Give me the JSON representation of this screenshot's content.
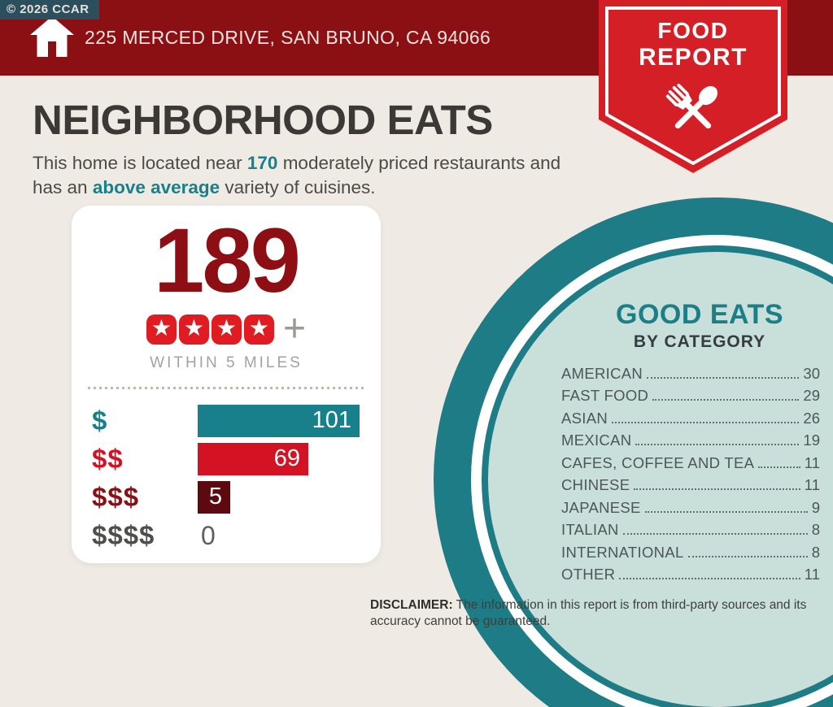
{
  "copyright": "© 2026 CCAR",
  "header": {
    "address": "225 MERCED DRIVE, SAN BRUNO, CA 94066"
  },
  "ribbon": {
    "line1": "FOOD",
    "line2": "REPORT"
  },
  "headline": {
    "title": "NEIGHBORHOOD EATS",
    "line1_pre": "This home is located near ",
    "line1_bold": "170",
    "line1_post": " moderately priced restaurants and",
    "line2_pre": "has an ",
    "line2_bold": "above average",
    "line2_post": " variety of cuisines."
  },
  "stats_card": {
    "total": "189",
    "star_count": 4,
    "plus": "+",
    "radius_label": "WITHIN 5 MILES",
    "price_bars": [
      {
        "label": "$",
        "value": 101,
        "bar_color": "#17808a",
        "label_color": "#17808a"
      },
      {
        "label": "$$",
        "value": 69,
        "bar_color": "#d31224",
        "label_color": "#d31224"
      },
      {
        "label": "$$$",
        "value": 5,
        "bar_color": "#5c0a0f",
        "label_color": "#8a1014"
      },
      {
        "label": "$$$$",
        "value": 0,
        "bar_color": null,
        "label_color": "#4f4e4c"
      }
    ]
  },
  "good_eats": {
    "title": "GOOD EATS",
    "subtitle": "BY CATEGORY",
    "items": [
      {
        "name": "AMERICAN",
        "value": 30
      },
      {
        "name": "FAST FOOD",
        "value": 29
      },
      {
        "name": "ASIAN",
        "value": 26
      },
      {
        "name": "MEXICAN",
        "value": 19
      },
      {
        "name": "CAFES, COFFEE AND TEA",
        "value": 11
      },
      {
        "name": "CHINESE",
        "value": 11
      },
      {
        "name": "JAPANESE",
        "value": 9
      },
      {
        "name": "ITALIAN",
        "value": 8
      },
      {
        "name": "INTERNATIONAL",
        "value": 8
      },
      {
        "name": "OTHER",
        "value": 11
      }
    ]
  },
  "disclaimer": {
    "label": "DISCLAIMER:",
    "text": " The information in this report is from third-party sources and its accuracy cannot be guaranteed."
  },
  "colors": {
    "header_maroon": "#8b1013",
    "ribbon_red": "#d51f26",
    "accent_teal": "#17808a",
    "circle_teal": "#1d7c85",
    "circle_light": "#c9dfda",
    "dark_red": "#8d0f13",
    "star_red": "#e01b22",
    "background_cream": "#efeae4"
  },
  "chart_data": [
    {
      "type": "bar",
      "orientation": "horizontal",
      "title": "Moderately priced restaurants by price tier (within 5 miles)",
      "categories": [
        "$",
        "$$",
        "$$$",
        "$$$$"
      ],
      "values": [
        101,
        69,
        5,
        0
      ],
      "bar_colors": [
        "#17808a",
        "#d31224",
        "#5c0a0f",
        null
      ],
      "annotations": {
        "total_restaurants": 189,
        "rating_stars": 4,
        "rating_suffix": "+",
        "scope_label": "WITHIN 5 MILES"
      },
      "xlim": [
        0,
        101
      ],
      "grid": false,
      "legend": false
    },
    {
      "type": "table",
      "title": "GOOD EATS BY CATEGORY",
      "categories": [
        "AMERICAN",
        "FAST FOOD",
        "ASIAN",
        "MEXICAN",
        "CAFES, COFFEE AND TEA",
        "CHINESE",
        "JAPANESE",
        "ITALIAN",
        "INTERNATIONAL",
        "OTHER"
      ],
      "values": [
        30,
        29,
        26,
        19,
        11,
        11,
        9,
        8,
        8,
        11
      ]
    }
  ]
}
